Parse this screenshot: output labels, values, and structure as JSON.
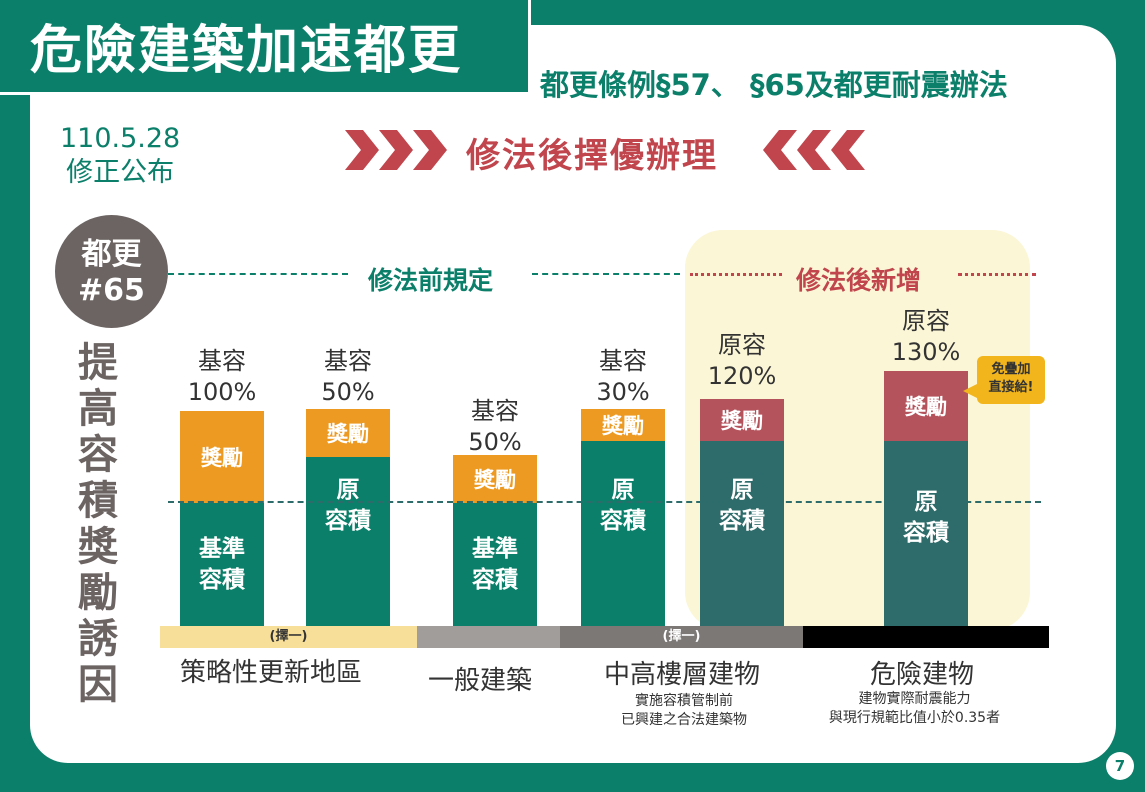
{
  "header": {
    "title": "危險建築加速都更",
    "subtitle": "都更條例§57、 §65及都更耐震辦法"
  },
  "date": {
    "line1": "110.5.28",
    "line2": "修正公布"
  },
  "headline": "修法後擇優辦理",
  "badge": {
    "line1": "都更",
    "line2": "#65"
  },
  "vertical_title": [
    "提",
    "高",
    "容",
    "積",
    "獎",
    "勵",
    "誘",
    "因"
  ],
  "sections": {
    "before": "修法前規定",
    "after": "修法後新增"
  },
  "bars": [
    {
      "cap1": "基容",
      "cap2": "100%",
      "top": "獎勵",
      "bottom1": "基準",
      "bottom2": "容積"
    },
    {
      "cap1": "基容",
      "cap2": "50%",
      "top": "獎勵",
      "bottom1": "原",
      "bottom2": "容積"
    },
    {
      "cap1": "基容",
      "cap2": "50%",
      "top": "獎勵",
      "bottom1": "基準",
      "bottom2": "容積"
    },
    {
      "cap1": "基容",
      "cap2": "30%",
      "top": "獎勵",
      "bottom1": "原",
      "bottom2": "容積"
    },
    {
      "cap1": "原容",
      "cap2": "120%",
      "top": "獎勵",
      "bottom1": "原",
      "bottom2": "容積"
    },
    {
      "cap1": "原容",
      "cap2": "130%",
      "top": "獎勵",
      "bottom1": "原",
      "bottom2": "容積"
    }
  ],
  "note": {
    "line1": "免疊加",
    "line2": "直接給!"
  },
  "category_bars": [
    {
      "label": "(擇一)",
      "color": "#f7df9a"
    },
    {
      "label": "",
      "color": "#a09d9b"
    },
    {
      "label": "(擇一)",
      "color": "#7b7875"
    },
    {
      "label": "",
      "color": "#000000"
    }
  ],
  "categories": {
    "strategic": "策略性更新地區",
    "general": "一般建築",
    "midhigh": "中高樓層建物",
    "midhigh_note1": "實施容積管制前",
    "midhigh_note2": "已興建之合法建築物",
    "danger": "危險建物",
    "danger_note1": "建物實際耐震能力",
    "danger_note2": "與現行規範比值小於0.35者"
  },
  "page_number": "7",
  "colors": {
    "brand_green": "#0b7f6a",
    "accent_red": "#c0454d",
    "orange": "#ec9a22",
    "teal": "#2d6c6a"
  }
}
